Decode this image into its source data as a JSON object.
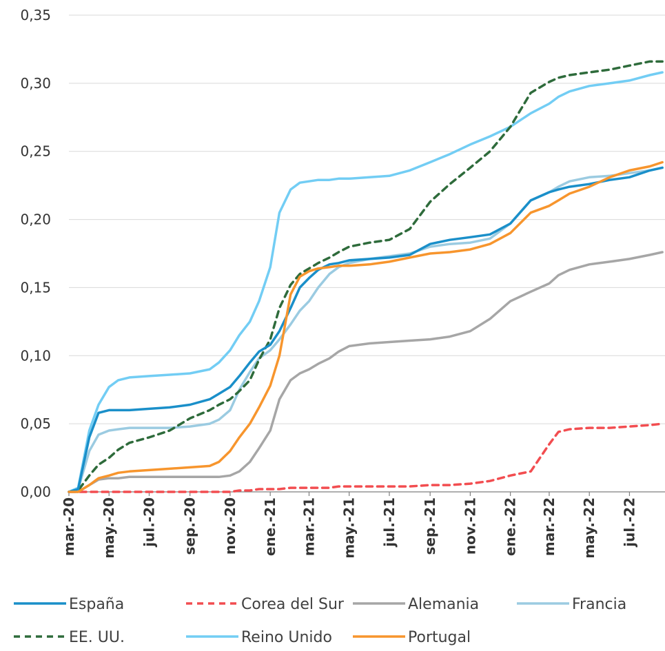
{
  "chart_data": {
    "type": "line",
    "title": "",
    "xlabel": "",
    "ylabel": "",
    "ylim": [
      0,
      0.35
    ],
    "yticks": [
      "0,00",
      "0,05",
      "0,10",
      "0,15",
      "0,20",
      "0,25",
      "0,30",
      "0,35"
    ],
    "x_tick_labels": [
      "mar.-20",
      "may.-20",
      "jul.-20",
      "sep.-20",
      "nov.-20",
      "ene.-21",
      "mar.-21",
      "may.-21",
      "jul.-21",
      "sep.-21",
      "nov.-21",
      "ene.-22",
      "mar.-22",
      "may.-22",
      "jul.-22"
    ],
    "grid": "horizontal",
    "legend_position": "bottom",
    "x": [
      "2020-03-01",
      "2020-03-15",
      "2020-04-01",
      "2020-04-15",
      "2020-05-01",
      "2020-05-15",
      "2020-06-01",
      "2020-07-01",
      "2020-08-01",
      "2020-09-01",
      "2020-10-01",
      "2020-10-15",
      "2020-11-01",
      "2020-11-15",
      "2020-12-01",
      "2020-12-15",
      "2021-01-01",
      "2021-01-15",
      "2021-02-01",
      "2021-02-15",
      "2021-03-01",
      "2021-03-15",
      "2021-04-01",
      "2021-04-15",
      "2021-05-01",
      "2021-06-01",
      "2021-07-01",
      "2021-08-01",
      "2021-09-01",
      "2021-10-01",
      "2021-11-01",
      "2021-12-01",
      "2022-01-01",
      "2022-02-01",
      "2022-03-01",
      "2022-03-15",
      "2022-04-01",
      "2022-05-01",
      "2022-06-01",
      "2022-07-01",
      "2022-08-01",
      "2022-08-20"
    ],
    "series": [
      {
        "name": "España",
        "color": "#1a8fc9",
        "dash": "solid",
        "values": [
          0.0,
          0.002,
          0.04,
          0.058,
          0.06,
          0.06,
          0.06,
          0.061,
          0.062,
          0.064,
          0.068,
          0.072,
          0.077,
          0.085,
          0.095,
          0.103,
          0.108,
          0.118,
          0.135,
          0.15,
          0.157,
          0.163,
          0.167,
          0.168,
          0.17,
          0.171,
          0.172,
          0.174,
          0.182,
          0.185,
          0.187,
          0.189,
          0.197,
          0.214,
          0.22,
          0.222,
          0.224,
          0.226,
          0.229,
          0.231,
          0.236,
          0.238
        ]
      },
      {
        "name": "Corea del Sur",
        "color": "#f24d50",
        "dash": "dashed",
        "values": [
          0.0,
          0.0,
          0.0,
          0.0,
          0.0,
          0.0,
          0.0,
          0.0,
          0.0,
          0.0,
          0.0,
          0.0,
          0.0,
          0.001,
          0.001,
          0.002,
          0.002,
          0.002,
          0.003,
          0.003,
          0.003,
          0.003,
          0.003,
          0.004,
          0.004,
          0.004,
          0.004,
          0.004,
          0.005,
          0.005,
          0.006,
          0.008,
          0.012,
          0.015,
          0.035,
          0.044,
          0.046,
          0.047,
          0.047,
          0.048,
          0.049,
          0.05
        ]
      },
      {
        "name": "Alemania",
        "color": "#a6a6a6",
        "dash": "solid",
        "values": [
          0.0,
          0.0,
          0.005,
          0.009,
          0.01,
          0.01,
          0.011,
          0.011,
          0.011,
          0.011,
          0.011,
          0.011,
          0.012,
          0.015,
          0.022,
          0.032,
          0.045,
          0.068,
          0.082,
          0.087,
          0.09,
          0.094,
          0.098,
          0.103,
          0.107,
          0.109,
          0.11,
          0.111,
          0.112,
          0.114,
          0.118,
          0.127,
          0.14,
          0.147,
          0.153,
          0.159,
          0.163,
          0.167,
          0.169,
          0.171,
          0.174,
          0.176
        ]
      },
      {
        "name": "Francia",
        "color": "#9bcbe1",
        "dash": "solid",
        "values": [
          0.0,
          0.002,
          0.03,
          0.042,
          0.045,
          0.046,
          0.047,
          0.047,
          0.047,
          0.048,
          0.05,
          0.053,
          0.06,
          0.075,
          0.088,
          0.098,
          0.104,
          0.112,
          0.123,
          0.133,
          0.14,
          0.15,
          0.16,
          0.165,
          0.168,
          0.171,
          0.173,
          0.175,
          0.18,
          0.182,
          0.183,
          0.186,
          0.197,
          0.214,
          0.22,
          0.224,
          0.228,
          0.231,
          0.232,
          0.234,
          0.236,
          0.238
        ]
      },
      {
        "name": "EE. UU.",
        "color": "#2e6b3b",
        "dash": "dashed",
        "values": [
          0.0,
          0.001,
          0.012,
          0.02,
          0.025,
          0.031,
          0.036,
          0.04,
          0.045,
          0.054,
          0.06,
          0.064,
          0.068,
          0.074,
          0.082,
          0.097,
          0.112,
          0.135,
          0.152,
          0.16,
          0.164,
          0.168,
          0.172,
          0.176,
          0.18,
          0.183,
          0.185,
          0.193,
          0.213,
          0.226,
          0.238,
          0.25,
          0.268,
          0.293,
          0.301,
          0.304,
          0.306,
          0.308,
          0.31,
          0.313,
          0.316,
          0.316
        ]
      },
      {
        "name": "Reino Unido",
        "color": "#72cdf4",
        "dash": "solid",
        "values": [
          0.0,
          0.003,
          0.045,
          0.064,
          0.077,
          0.082,
          0.084,
          0.085,
          0.086,
          0.087,
          0.09,
          0.095,
          0.104,
          0.115,
          0.125,
          0.14,
          0.165,
          0.205,
          0.222,
          0.227,
          0.228,
          0.229,
          0.229,
          0.23,
          0.23,
          0.231,
          0.232,
          0.236,
          0.242,
          0.248,
          0.255,
          0.261,
          0.268,
          0.278,
          0.285,
          0.29,
          0.294,
          0.298,
          0.3,
          0.302,
          0.306,
          0.308
        ]
      },
      {
        "name": "Portugal",
        "color": "#f7952d",
        "dash": "solid",
        "values": [
          0.0,
          0.0,
          0.005,
          0.01,
          0.012,
          0.014,
          0.015,
          0.016,
          0.017,
          0.018,
          0.019,
          0.022,
          0.03,
          0.04,
          0.05,
          0.062,
          0.078,
          0.1,
          0.145,
          0.158,
          0.162,
          0.164,
          0.165,
          0.166,
          0.166,
          0.167,
          0.169,
          0.172,
          0.175,
          0.176,
          0.178,
          0.182,
          0.19,
          0.205,
          0.21,
          0.214,
          0.219,
          0.224,
          0.231,
          0.236,
          0.239,
          0.242
        ]
      }
    ]
  }
}
